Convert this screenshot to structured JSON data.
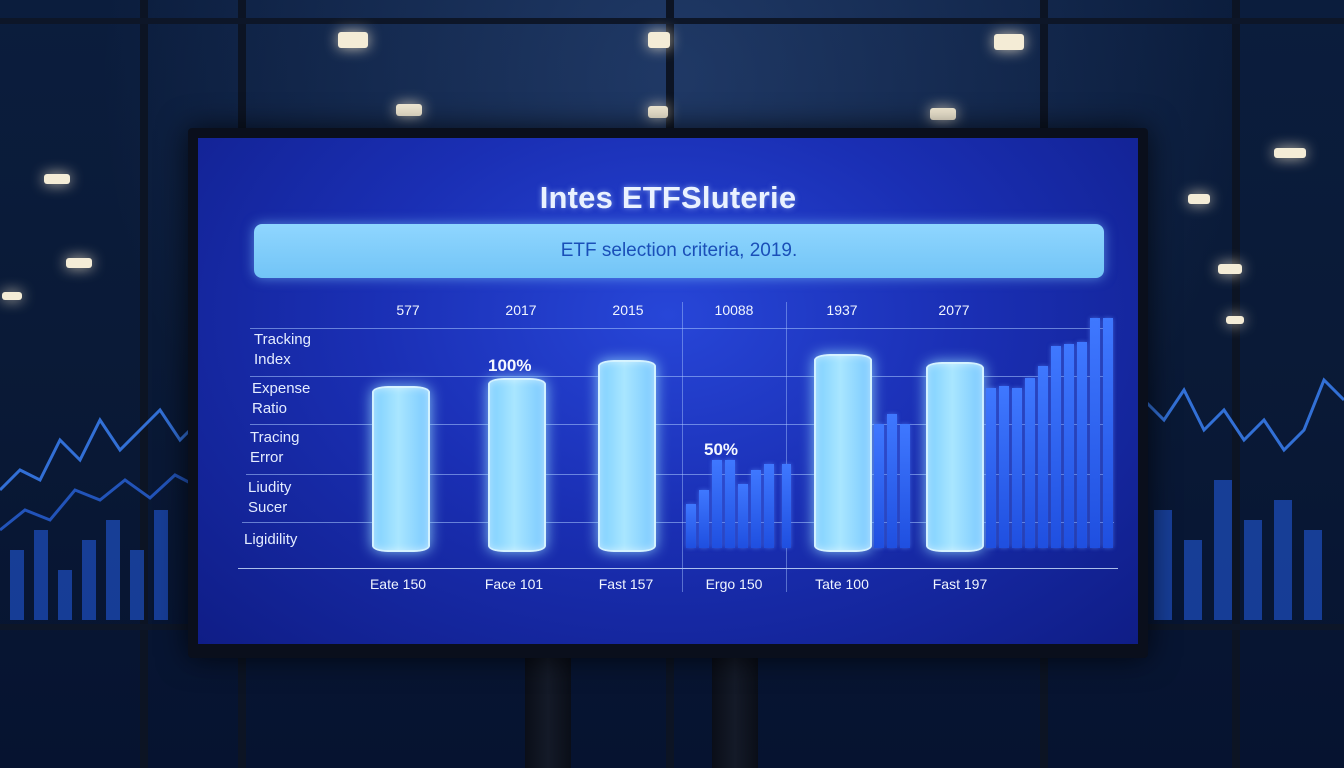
{
  "screen": {
    "title": "Intes ETFSluterie",
    "subtitle": "ETF selection criteria, 2019."
  },
  "row_labels": [
    "Tracking\nIndex",
    "Expense\nRatio",
    "Tracing\nError",
    "Liudity\nSucer",
    "Ligidility"
  ],
  "top_years": [
    "577",
    "2017",
    "2015",
    "10088",
    "1937",
    "2077"
  ],
  "bottom_labels": [
    "Eate 150",
    "Face 101",
    "Fast 157",
    "Ergo 150",
    "Tate 100",
    "Fast 197"
  ],
  "annotations": {
    "bar2_pct": "100%",
    "section4_pct": "50%"
  },
  "colors": {
    "screen_blue": "#1a2fb4",
    "pill_light": "#a9e6ff",
    "bar_blue": "#2a5ef0",
    "subtitle_box": "#8fd6ff"
  }
}
